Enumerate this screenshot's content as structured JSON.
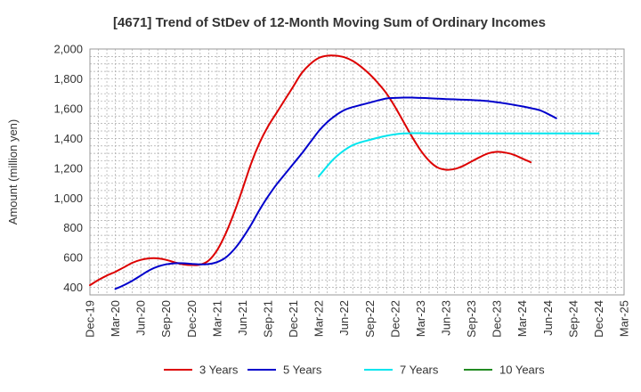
{
  "chart_data": {
    "type": "line",
    "title": "[4671]  Trend of StDev of 12-Month Moving Sum of Ordinary Incomes",
    "ylabel": "Amount (million yen)",
    "xlabel": "",
    "ylim": [
      350,
      2000
    ],
    "yticks": [
      400,
      600,
      800,
      1000,
      1200,
      1400,
      1600,
      1800,
      2000
    ],
    "ytick_labels": [
      "400",
      "600",
      "800",
      "1,000",
      "1,200",
      "1,400",
      "1,600",
      "1,800",
      "2,000"
    ],
    "x_start": "Dec-19",
    "xticks": [
      "Dec-19",
      "Mar-20",
      "Jun-20",
      "Sep-20",
      "Dec-20",
      "Mar-21",
      "Jun-21",
      "Sep-21",
      "Dec-21",
      "Mar-22",
      "Jun-22",
      "Sep-22",
      "Dec-22",
      "Mar-23",
      "Jun-23",
      "Sep-23",
      "Dec-23",
      "Mar-24",
      "Jun-24",
      "Sep-24",
      "Dec-24",
      "Mar-25"
    ],
    "grid": true,
    "legend_position": "bottom",
    "series": [
      {
        "name": "3 Years",
        "color": "#dd0000",
        "start": "Dec-19",
        "values": [
          415,
          450,
          480,
          505,
          535,
          565,
          585,
          595,
          595,
          585,
          568,
          555,
          550,
          553,
          580,
          650,
          760,
          900,
          1060,
          1230,
          1370,
          1480,
          1570,
          1660,
          1750,
          1840,
          1900,
          1940,
          1955,
          1955,
          1945,
          1920,
          1880,
          1830,
          1770,
          1700,
          1610,
          1510,
          1410,
          1320,
          1250,
          1205,
          1190,
          1195,
          1215,
          1245,
          1275,
          1300,
          1310,
          1305,
          1290,
          1265,
          1240
        ]
      },
      {
        "name": "5 Years",
        "color": "#0000cc",
        "start": "Mar-20",
        "values": [
          390,
          415,
          445,
          480,
          515,
          540,
          555,
          562,
          562,
          558,
          555,
          557,
          570,
          600,
          655,
          730,
          820,
          920,
          1010,
          1090,
          1160,
          1230,
          1300,
          1375,
          1450,
          1510,
          1555,
          1590,
          1610,
          1625,
          1640,
          1655,
          1668,
          1672,
          1674,
          1674,
          1672,
          1670,
          1667,
          1664,
          1662,
          1660,
          1658,
          1655,
          1650,
          1643,
          1635,
          1625,
          1615,
          1603,
          1590,
          1565,
          1535
        ]
      },
      {
        "name": "7 Years",
        "color": "#00e5ee",
        "start": "Mar-22",
        "values": [
          1145,
          1215,
          1275,
          1320,
          1355,
          1375,
          1390,
          1405,
          1418,
          1428,
          1433,
          1435,
          1435,
          1434,
          1433,
          1433,
          1433,
          1433,
          1433,
          1433,
          1433,
          1433,
          1433,
          1433,
          1433,
          1433,
          1433,
          1433,
          1433,
          1433,
          1433,
          1433,
          1433,
          1433
        ]
      },
      {
        "name": "10 Years",
        "color": "#228b22",
        "start": "Dec-24",
        "values": []
      }
    ]
  }
}
